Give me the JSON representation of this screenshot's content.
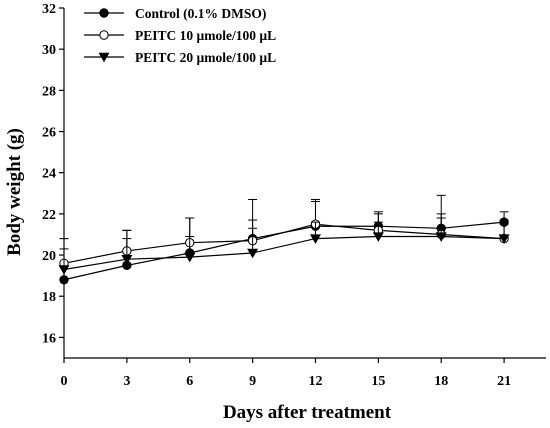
{
  "chart_data": {
    "type": "line",
    "title": "",
    "xlabel": "Days after treatment",
    "ylabel": "Body weight (g)",
    "x": [
      0,
      3,
      6,
      9,
      12,
      15,
      18,
      21
    ],
    "xticks": [
      "0",
      "3",
      "6",
      "9",
      "12",
      "15",
      "18",
      "21"
    ],
    "xlim": [
      0,
      23
    ],
    "ylim": [
      15,
      32
    ],
    "yticks": [
      "16",
      "18",
      "20",
      "22",
      "24",
      "26",
      "28",
      "30",
      "32"
    ],
    "grid": false,
    "legend_position": "top-left",
    "series": [
      {
        "name": "Control (0.1% DMSO)",
        "marker": "filled-circle",
        "values": [
          18.8,
          19.5,
          20.1,
          20.8,
          21.4,
          21.4,
          21.3,
          21.6
        ],
        "error": [
          2.0,
          1.7,
          1.7,
          1.9,
          1.3,
          0.7,
          1.6,
          0.5
        ]
      },
      {
        "name": "PEITC 10 µmole/100 µL",
        "marker": "open-circle",
        "values": [
          19.6,
          20.2,
          20.6,
          20.7,
          21.5,
          21.2,
          21.0,
          20.8
        ],
        "error": [
          1.2,
          1.0,
          1.2,
          1.0,
          1.1,
          0.8,
          1.0,
          0.9
        ]
      },
      {
        "name": "PEITC 20 µmole/100 µL",
        "marker": "filled-triangle-down",
        "values": [
          19.3,
          19.8,
          19.9,
          20.1,
          20.8,
          20.9,
          20.9,
          20.8
        ],
        "error": [
          1.0,
          1.0,
          1.0,
          1.2,
          0.8,
          0.7,
          0.9,
          0.7
        ]
      }
    ]
  }
}
